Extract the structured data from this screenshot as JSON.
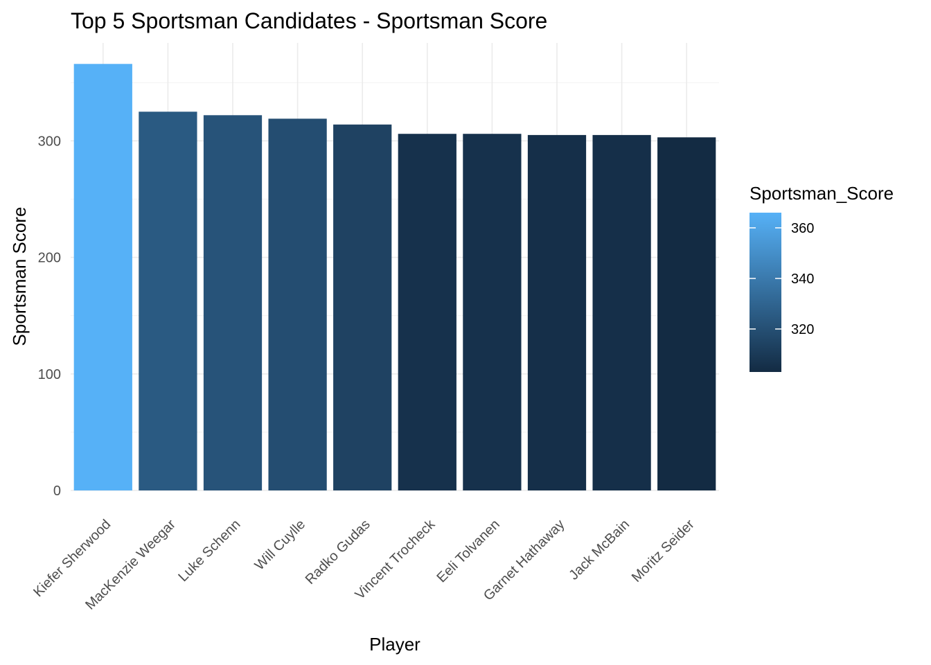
{
  "chart_data": {
    "type": "bar",
    "title": "Top 5 Sportsman Candidates - Sportsman Score",
    "xlabel": "Player",
    "ylabel": "Sportsman Score",
    "categories": [
      "Kiefer Sherwood",
      "MacKenzie Weegar",
      "Luke Schenn",
      "Will Cuylle",
      "Radko Gudas",
      "Vincent Trocheck",
      "Eeli Tolvanen",
      "Garnet Hathaway",
      "Jack McBain",
      "Moritz Seider"
    ],
    "values": [
      366,
      325,
      322,
      319,
      314,
      306,
      306,
      305,
      305,
      303
    ],
    "ylim": [
      0,
      384
    ],
    "yticks": [
      0,
      100,
      200,
      300
    ],
    "grid": true,
    "legend": {
      "title": "Sportsman_Score",
      "placement": "right",
      "min": 303,
      "max": 366,
      "ticks": [
        320,
        340,
        360
      ],
      "color_low": "#132B43",
      "color_high": "#56B1F7"
    }
  }
}
